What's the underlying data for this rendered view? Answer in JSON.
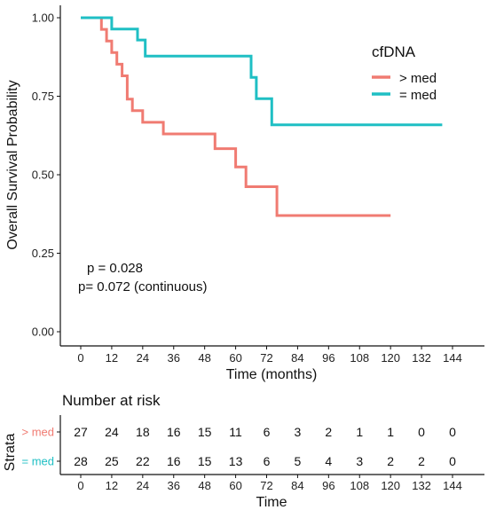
{
  "chart_data": [
    {
      "type": "line",
      "subtype": "kaplan-meier",
      "title": "",
      "xlabel": "Time (months)",
      "ylabel": "Overall Survival Probability",
      "xlim": [
        0,
        144
      ],
      "ylim": [
        0,
        1
      ],
      "x_ticks": [
        "0",
        "12",
        "24",
        "36",
        "48",
        "60",
        "72",
        "84",
        "96",
        "108",
        "120",
        "132",
        "144"
      ],
      "y_ticks": [
        "0.00",
        "0.25",
        "0.50",
        "0.75",
        "1.00"
      ],
      "grid": false,
      "legend": {
        "title": "cfDNA",
        "position": "top-right",
        "entries": [
          "> med",
          "= med"
        ]
      },
      "annotations": [
        "p = 0.028",
        "p= 0.072 (continuous)"
      ],
      "series": [
        {
          "name": "> med",
          "color": "#F07B72",
          "x": [
            0,
            8,
            10,
            12,
            14,
            16,
            18,
            20,
            24,
            32,
            52,
            60,
            64,
            76,
            120
          ],
          "y": [
            1.0,
            0.963,
            0.926,
            0.889,
            0.852,
            0.815,
            0.741,
            0.704,
            0.667,
            0.63,
            0.583,
            0.525,
            0.462,
            0.37,
            0.37
          ]
        },
        {
          "name": "= med",
          "color": "#1FBFC4",
          "x": [
            0,
            12,
            22,
            25,
            66,
            68,
            74,
            140
          ],
          "y": [
            1.0,
            0.964,
            0.929,
            0.878,
            0.81,
            0.742,
            0.659,
            0.659
          ]
        }
      ]
    },
    {
      "type": "table",
      "title": "Number at risk",
      "xlabel": "Time",
      "ylabel": "Strata",
      "x_ticks": [
        "0",
        "12",
        "24",
        "36",
        "48",
        "60",
        "72",
        "84",
        "96",
        "108",
        "120",
        "132",
        "144"
      ],
      "rows": [
        {
          "label": "> med",
          "color": "#F07B72",
          "values": [
            "27",
            "24",
            "18",
            "16",
            "15",
            "11",
            "6",
            "3",
            "2",
            "1",
            "1",
            "0",
            "0"
          ]
        },
        {
          "label": "= med",
          "color": "#1FBFC4",
          "values": [
            "28",
            "25",
            "22",
            "16",
            "15",
            "13",
            "6",
            "5",
            "4",
            "3",
            "2",
            "2",
            "0"
          ]
        }
      ]
    }
  ]
}
